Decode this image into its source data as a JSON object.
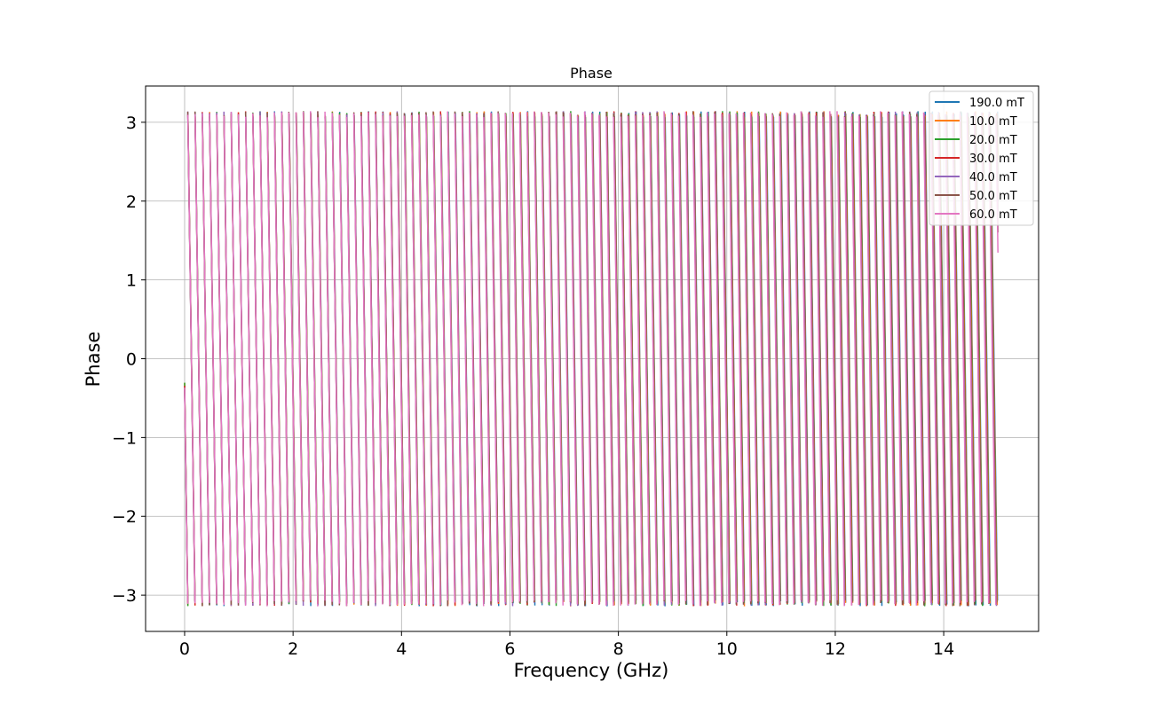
{
  "chart_data": {
    "type": "line",
    "title": "Phase",
    "xlabel": "Frequency (GHz)",
    "ylabel": "Phase",
    "xlim": [
      -0.72,
      15.75
    ],
    "ylim": [
      -3.46,
      3.46
    ],
    "xticks": [
      0,
      2,
      4,
      6,
      8,
      10,
      12,
      14
    ],
    "xtick_labels": [
      "0",
      "2",
      "4",
      "6",
      "8",
      "10",
      "12",
      "14"
    ],
    "yticks": [
      -3,
      -2,
      -1,
      0,
      1,
      2,
      3
    ],
    "ytick_labels": [
      "−3",
      "−2",
      "−1",
      "0",
      "1",
      "2",
      "3"
    ],
    "grid": true,
    "legend_position": "top-right",
    "wrap": {
      "start_phase": -0.35,
      "cycles": 112.5,
      "x_start": 0.0,
      "x_end": 15.0,
      "end_phase": -2.3
    },
    "series": [
      {
        "name": "190.0 mT",
        "color": "#1f77b4"
      },
      {
        "name": "10.0 mT",
        "color": "#ff7f0e"
      },
      {
        "name": "20.0 mT",
        "color": "#2ca02c"
      },
      {
        "name": "30.0 mT",
        "color": "#d62728"
      },
      {
        "name": "40.0 mT",
        "color": "#9467bd"
      },
      {
        "name": "50.0 mT",
        "color": "#8c564b"
      },
      {
        "name": "60.0 mT",
        "color": "#e377c2"
      }
    ]
  }
}
